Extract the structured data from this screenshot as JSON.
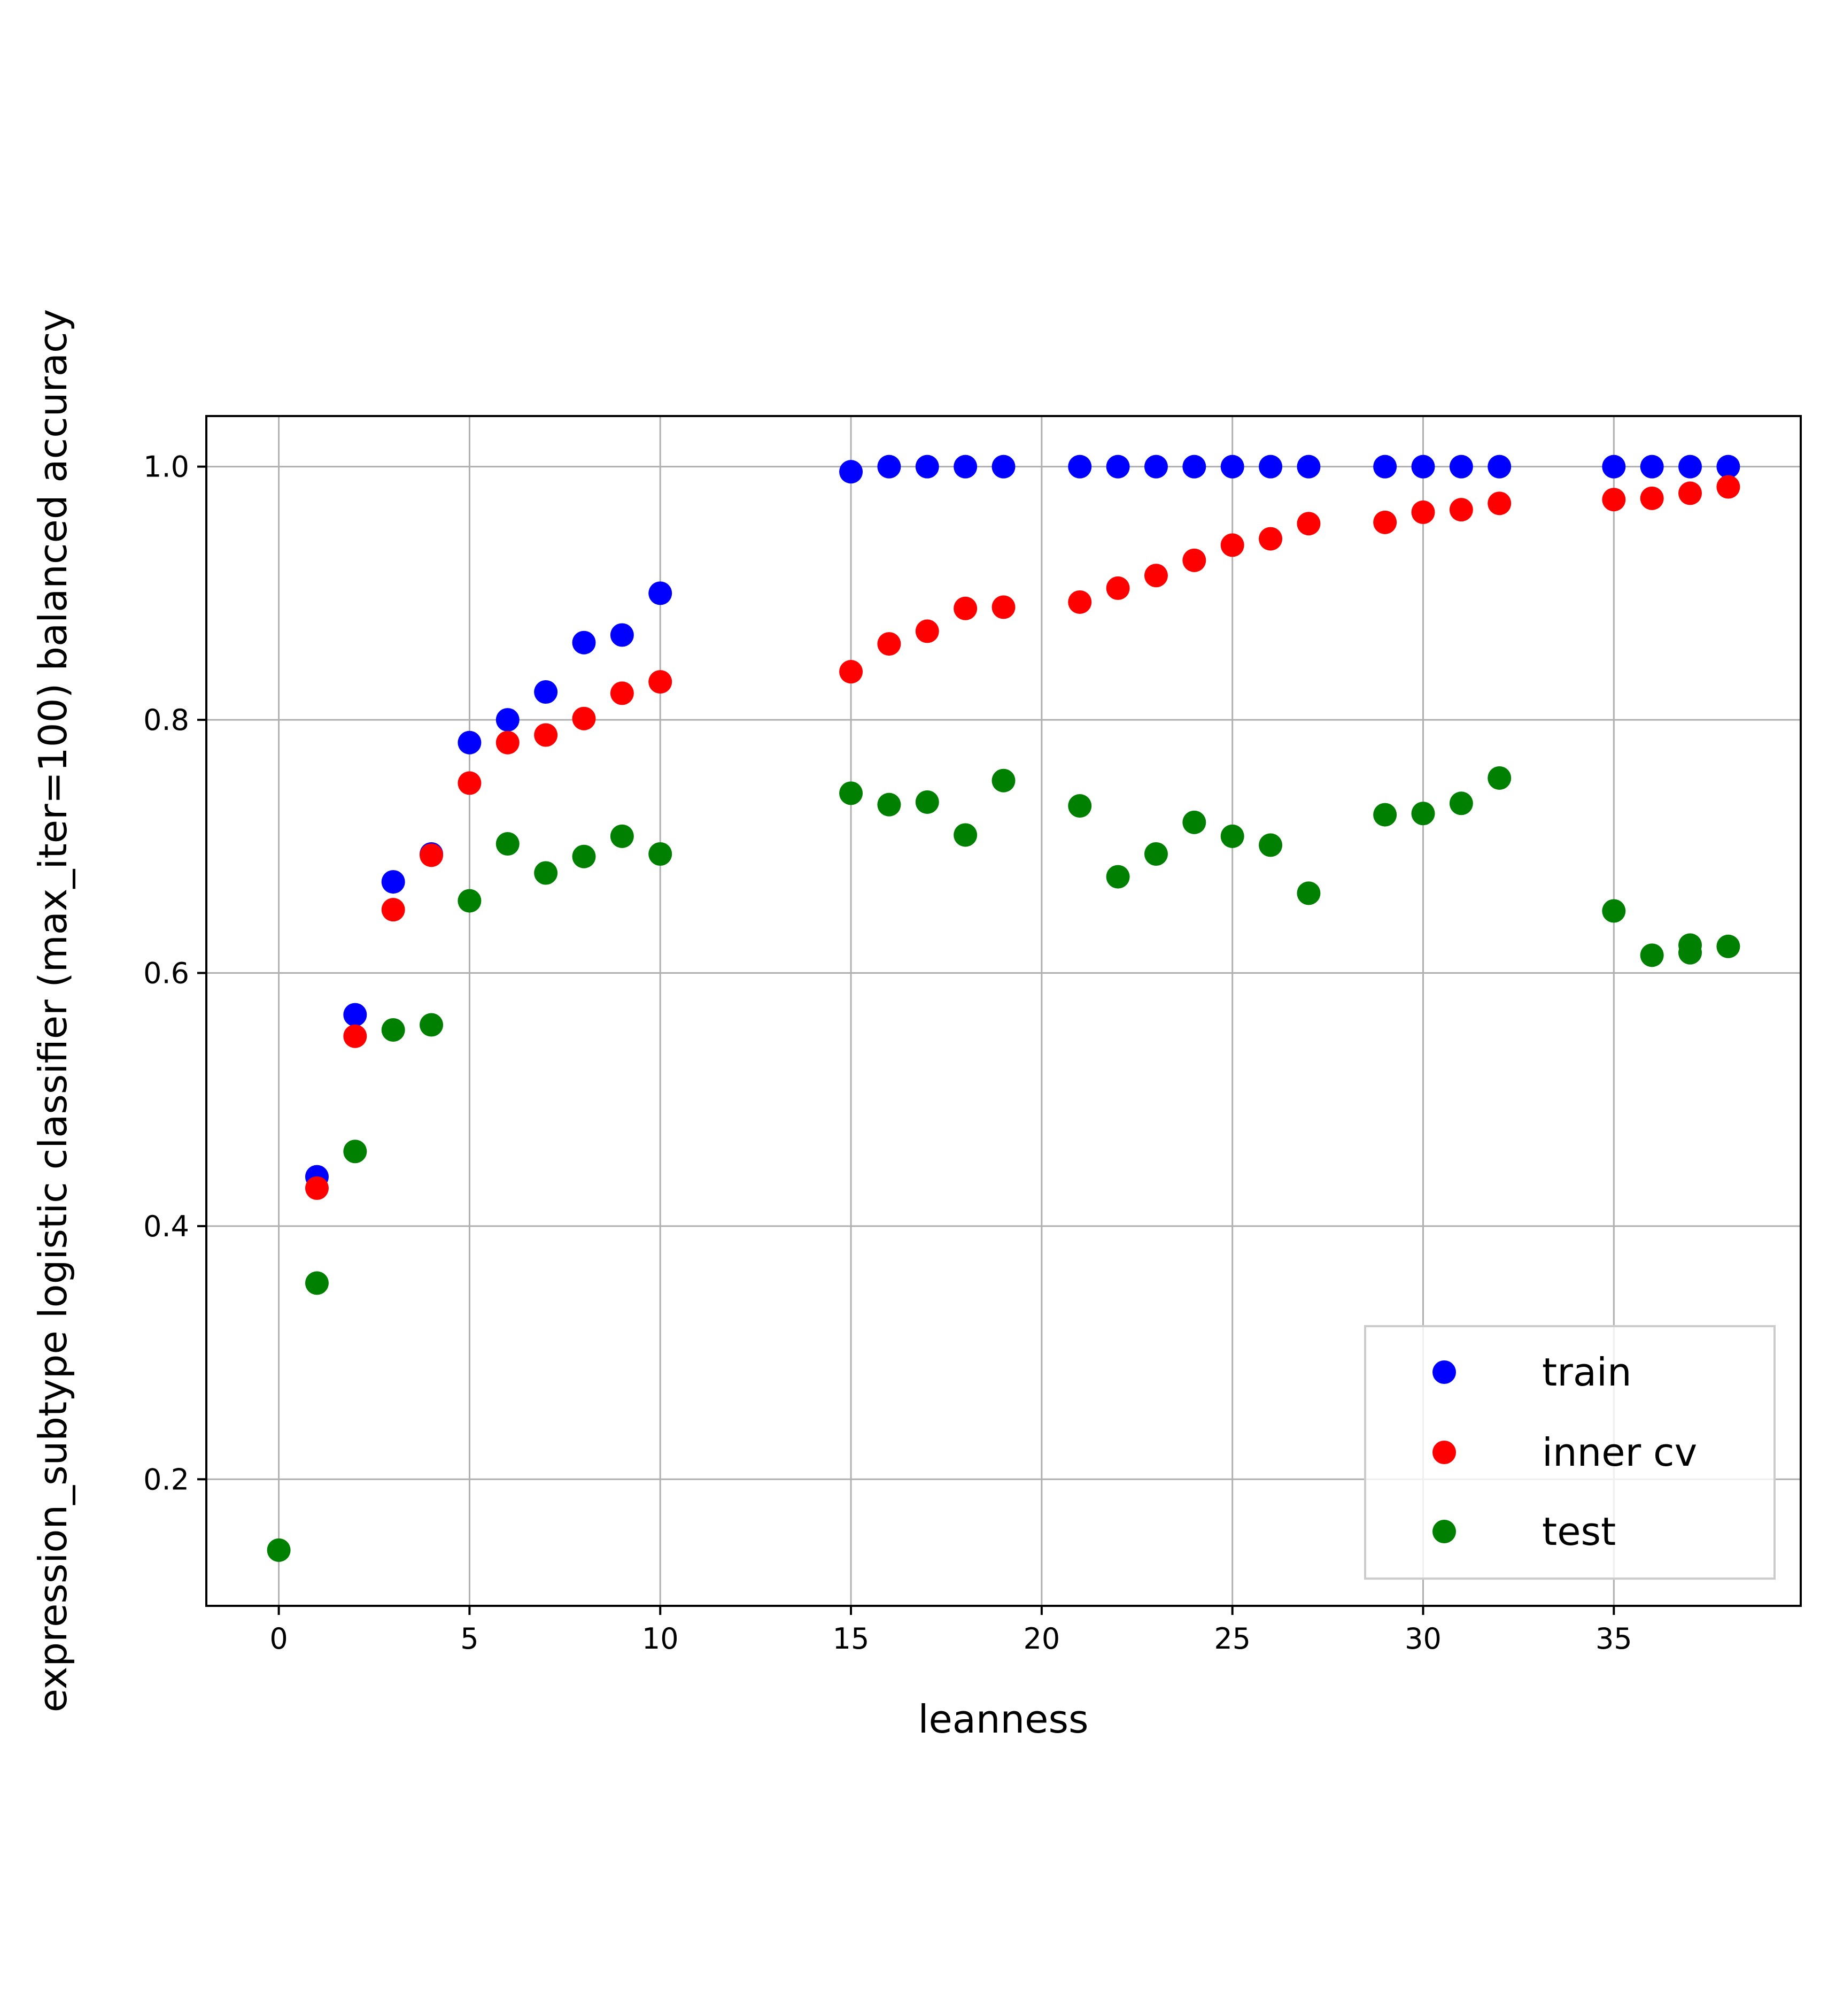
{
  "chart_data": {
    "type": "scatter",
    "title": "",
    "xlabel": "leanness",
    "ylabel": "expression_subtype logistic classifier (max_iter=100) balanced accuracy",
    "xlim": [
      -1.9,
      39.9
    ],
    "ylim": [
      0.1,
      1.04
    ],
    "xticks": [
      0,
      5,
      10,
      15,
      20,
      25,
      30,
      35
    ],
    "yticks": [
      0.2,
      0.4,
      0.6,
      0.8,
      1.0
    ],
    "xtick_labels": [
      "0",
      "5",
      "10",
      "15",
      "20",
      "25",
      "30",
      "35"
    ],
    "ytick_labels": [
      "0.2",
      "0.4",
      "0.6",
      "0.8",
      "1.0"
    ],
    "grid": true,
    "legend_position": "lower right",
    "series": [
      {
        "name": "train",
        "color": "#0000ff",
        "points": [
          [
            1,
            0.439
          ],
          [
            2,
            0.567
          ],
          [
            3,
            0.672
          ],
          [
            4,
            0.694
          ],
          [
            5,
            0.782
          ],
          [
            6,
            0.8
          ],
          [
            7,
            0.822
          ],
          [
            8,
            0.861
          ],
          [
            9,
            0.867
          ],
          [
            10,
            0.9
          ],
          [
            15,
            0.996
          ],
          [
            16,
            1.0
          ],
          [
            17,
            1.0
          ],
          [
            18,
            1.0
          ],
          [
            19,
            1.0
          ],
          [
            21,
            1.0
          ],
          [
            22,
            1.0
          ],
          [
            23,
            1.0
          ],
          [
            24,
            1.0
          ],
          [
            25,
            1.0
          ],
          [
            26,
            1.0
          ],
          [
            27,
            1.0
          ],
          [
            29,
            1.0
          ],
          [
            30,
            1.0
          ],
          [
            31,
            1.0
          ],
          [
            32,
            1.0
          ],
          [
            35,
            1.0
          ],
          [
            36,
            1.0
          ],
          [
            37,
            1.0
          ],
          [
            38,
            1.0
          ]
        ]
      },
      {
        "name": "inner cv",
        "color": "#ff0000",
        "points": [
          [
            1,
            0.43
          ],
          [
            2,
            0.55
          ],
          [
            3,
            0.65
          ],
          [
            4,
            0.693
          ],
          [
            5,
            0.75
          ],
          [
            6,
            0.782
          ],
          [
            7,
            0.788
          ],
          [
            8,
            0.801
          ],
          [
            9,
            0.821
          ],
          [
            10,
            0.83
          ],
          [
            15,
            0.838
          ],
          [
            16,
            0.86
          ],
          [
            17,
            0.87
          ],
          [
            18,
            0.888
          ],
          [
            19,
            0.889
          ],
          [
            21,
            0.893
          ],
          [
            22,
            0.904
          ],
          [
            23,
            0.914
          ],
          [
            24,
            0.926
          ],
          [
            25,
            0.938
          ],
          [
            26,
            0.943
          ],
          [
            27,
            0.955
          ],
          [
            29,
            0.956
          ],
          [
            30,
            0.964
          ],
          [
            31,
            0.966
          ],
          [
            32,
            0.971
          ],
          [
            35,
            0.974
          ],
          [
            36,
            0.975
          ],
          [
            37,
            0.979
          ],
          [
            38,
            0.984
          ]
        ]
      },
      {
        "name": "test",
        "color": "#008000",
        "points": [
          [
            0,
            0.144
          ],
          [
            1,
            0.355
          ],
          [
            2,
            0.459
          ],
          [
            3,
            0.555
          ],
          [
            4,
            0.559
          ],
          [
            5,
            0.657
          ],
          [
            6,
            0.702
          ],
          [
            7,
            0.679
          ],
          [
            8,
            0.692
          ],
          [
            9,
            0.708
          ],
          [
            10,
            0.694
          ],
          [
            15,
            0.742
          ],
          [
            16,
            0.733
          ],
          [
            17,
            0.735
          ],
          [
            18,
            0.709
          ],
          [
            19,
            0.752
          ],
          [
            21,
            0.732
          ],
          [
            22,
            0.676
          ],
          [
            23,
            0.694
          ],
          [
            24,
            0.719
          ],
          [
            25,
            0.708
          ],
          [
            26,
            0.701
          ],
          [
            27,
            0.663
          ],
          [
            29,
            0.725
          ],
          [
            30,
            0.726
          ],
          [
            31,
            0.734
          ],
          [
            32,
            0.754
          ],
          [
            35,
            0.649
          ],
          [
            36,
            0.614
          ],
          [
            37,
            0.616
          ],
          [
            37,
            0.622
          ],
          [
            38,
            0.621
          ]
        ]
      }
    ]
  }
}
